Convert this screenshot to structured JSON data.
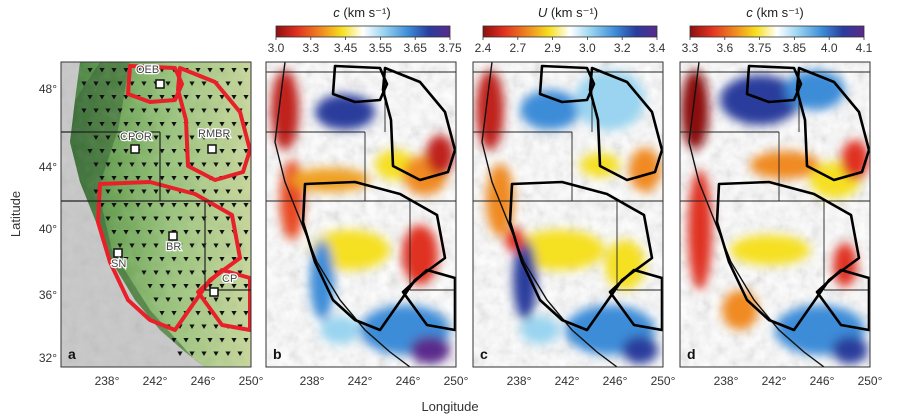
{
  "figure": {
    "xlabel": "Longitude",
    "ylabel": "Latitude",
    "lon_ticks": [
      "238°",
      "242°",
      "246°",
      "250°"
    ],
    "lat_ticks": [
      "48°",
      "44°",
      "40°",
      "36°",
      "32°"
    ],
    "panel_letters": [
      "a",
      "b",
      "c",
      "d"
    ],
    "region_labels": [
      "OEB",
      "CPOR",
      "RMBR",
      "BR",
      "SN",
      "CP"
    ]
  },
  "colorbars": [
    {
      "quantity": "c",
      "unit": " (km s⁻¹)",
      "tick_labels": [
        "3.0",
        "3.3",
        "3.45",
        "3.55",
        "3.65",
        "3.75"
      ]
    },
    {
      "quantity": "U",
      "unit": " (km s⁻¹)",
      "tick_labels": [
        "2.4",
        "2.7",
        "2.9",
        "3.0",
        "3.2",
        "3.4"
      ]
    },
    {
      "quantity": "c",
      "unit": " (km s⁻¹)",
      "tick_labels": [
        "3.3",
        "3.6",
        "3.75",
        "3.85",
        "4.0",
        "4.1"
      ]
    }
  ],
  "colors": {
    "region_outline": "#e8202a",
    "ocean": "#c8c8c8",
    "map_base": "#8fbf6e",
    "colormap": [
      "#8c1010",
      "#e03020",
      "#f08a20",
      "#f6e020",
      "#ffffff",
      "#9ad4f0",
      "#3c8cd8",
      "#2a3c9c",
      "#5a2a8c"
    ]
  }
}
